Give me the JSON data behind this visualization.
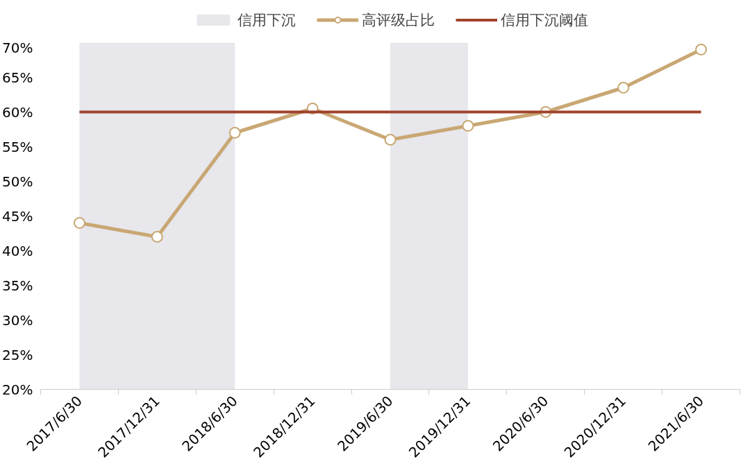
{
  "chart_data": {
    "type": "line",
    "categories": [
      "2017/6/30",
      "2017/12/31",
      "2018/6/30",
      "2018/12/31",
      "2019/6/30",
      "2019/12/31",
      "2020/6/30",
      "2020/12/31",
      "2021/6/30"
    ],
    "series": [
      {
        "name": "高评级占比",
        "color": "#c9a773",
        "values": [
          44,
          42,
          57,
          60.5,
          56,
          58,
          60,
          63.5,
          69
        ]
      }
    ],
    "ref_lines": [
      {
        "axis": "y",
        "value": 60,
        "label": "信用下沉阈值",
        "color": "#a0432c"
      }
    ],
    "bands": [
      {
        "axis": "x",
        "from": "2017/6/30",
        "to": "2018/6/30",
        "label": "信用下沉",
        "color": "#e7e7ec"
      },
      {
        "axis": "x",
        "from": "2019/6/30",
        "to": "2019/12/31",
        "color": "#e7e7ec"
      }
    ],
    "ylim": [
      20,
      70
    ],
    "yticks": [
      {
        "value": 20,
        "label": "20%"
      },
      {
        "value": 25,
        "label": "25%"
      },
      {
        "value": 30,
        "label": "30%"
      },
      {
        "value": 35,
        "label": "35%"
      },
      {
        "value": 40,
        "label": "40%"
      },
      {
        "value": 45,
        "label": "45%"
      },
      {
        "value": 50,
        "label": "50%"
      },
      {
        "value": 55,
        "label": "55%"
      },
      {
        "value": 60,
        "label": "60%"
      },
      {
        "value": 65,
        "label": "65%"
      },
      {
        "value": 70,
        "label": "70%"
      }
    ],
    "grid": false,
    "legend": "top",
    "marker": "circle",
    "line_style": "solid"
  }
}
